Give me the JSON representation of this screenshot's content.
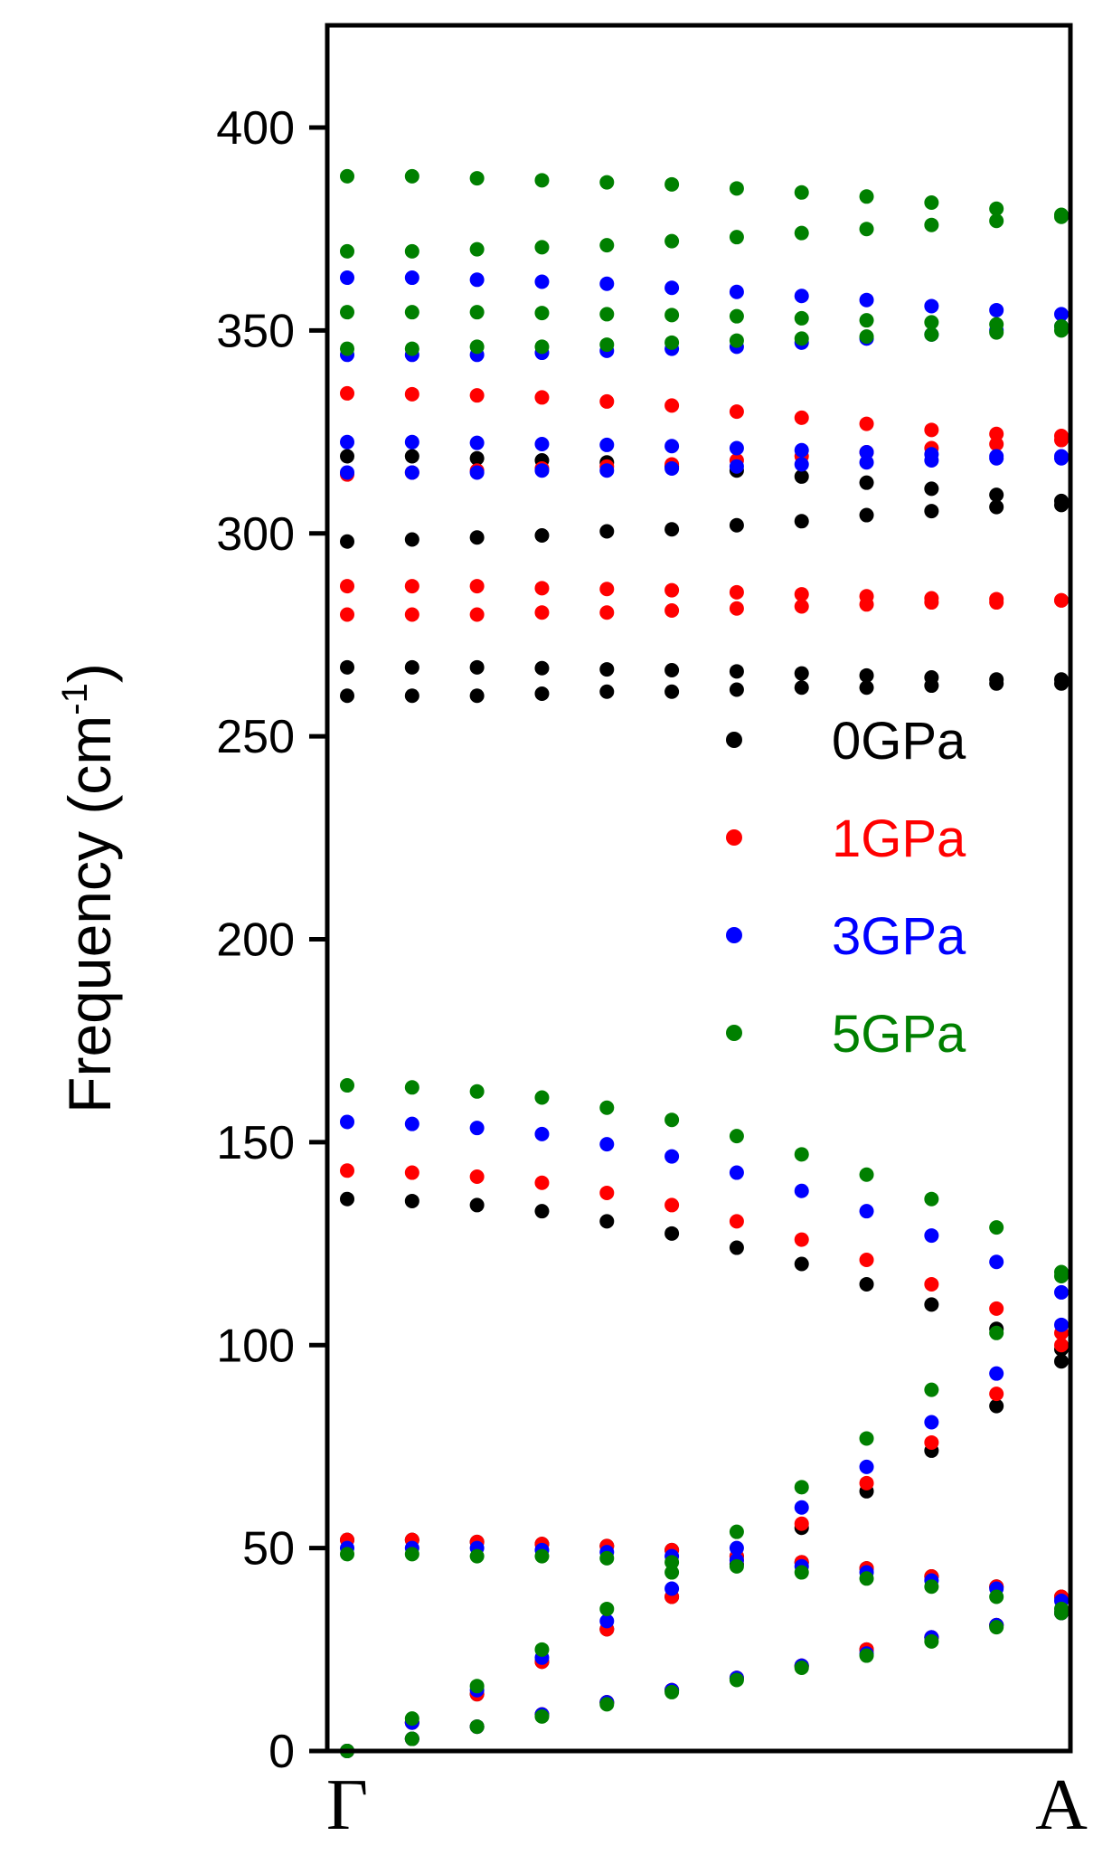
{
  "chart_data": {
    "type": "scatter",
    "title": "",
    "xlabel": "",
    "ylabel": "Frequency (cm",
    "ylabel_superscript": "-1",
    "ylabel_close": ")",
    "ylim": [
      0,
      425
    ],
    "yticks": [
      0,
      50,
      100,
      150,
      200,
      250,
      300,
      350,
      400
    ],
    "x_points": [
      "Γ",
      "A"
    ],
    "grid": false,
    "legend_position": "right-middle",
    "series": [
      {
        "name": "0GPa",
        "color": "#000000",
        "branches": [
          [
            0,
            7,
            14,
            22,
            30,
            38,
            46,
            55,
            64,
            74,
            85,
            96
          ],
          [
            0,
            3,
            6,
            9,
            12,
            15,
            18,
            21,
            25,
            28,
            31,
            34
          ],
          [
            52,
            52,
            51.5,
            51,
            50.5,
            49.5,
            48,
            46.5,
            45,
            43,
            40.5,
            38
          ],
          [
            136,
            135.5,
            134.5,
            133,
            130.5,
            127.5,
            124,
            120,
            115,
            110,
            104,
            99
          ],
          [
            260,
            260,
            260,
            260.5,
            261,
            261,
            261.5,
            262,
            262,
            262.5,
            263,
            263
          ],
          [
            267,
            267,
            267,
            266.8,
            266.5,
            266.3,
            266,
            265.5,
            265,
            264.5,
            264,
            264
          ],
          [
            298,
            298.5,
            299,
            299.5,
            300.5,
            301,
            302,
            303,
            304.5,
            305.5,
            306.5,
            307
          ],
          [
            319,
            319,
            318.5,
            318,
            317.5,
            316.5,
            315.5,
            314,
            312.5,
            311,
            309.5,
            308
          ]
        ]
      },
      {
        "name": "1GPa",
        "color": "#ff0000",
        "branches": [
          [
            0,
            7,
            14,
            22,
            30,
            38,
            47,
            56,
            66,
            76,
            88,
            100
          ],
          [
            0,
            3,
            6,
            9,
            12,
            15,
            18,
            21,
            25,
            28,
            31,
            34
          ],
          [
            52,
            52,
            51.5,
            51,
            50.5,
            49.5,
            48,
            46.5,
            45,
            43,
            40.5,
            38
          ],
          [
            143,
            142.5,
            141.5,
            140,
            137.5,
            134.5,
            130.5,
            126,
            121,
            115,
            109,
            103
          ],
          [
            280,
            280,
            280,
            280.5,
            280.5,
            281,
            281.5,
            282,
            282.5,
            283,
            283,
            283.5
          ],
          [
            287,
            287,
            287,
            286.5,
            286.3,
            286,
            285.5,
            285,
            284.5,
            284,
            283.8,
            283.5
          ],
          [
            314.5,
            315,
            315.5,
            316,
            316.5,
            317,
            318,
            319,
            320,
            321,
            322,
            323
          ],
          [
            334.5,
            334.3,
            334,
            333.5,
            332.5,
            331.5,
            330,
            328.5,
            327,
            325.5,
            324.5,
            324
          ]
        ]
      },
      {
        "name": "3GPa",
        "color": "#0000ff",
        "branches": [
          [
            0,
            7,
            15,
            23,
            32,
            40,
            50,
            60,
            70,
            81,
            93,
            105
          ],
          [
            0,
            3,
            6,
            9,
            12,
            15,
            18,
            21,
            24,
            28,
            31,
            34
          ],
          [
            50,
            50,
            50,
            49.5,
            49,
            48,
            47,
            45.5,
            44,
            42,
            40,
            37
          ],
          [
            155,
            154.5,
            153.5,
            152,
            149.5,
            146.5,
            142.5,
            138,
            133,
            127,
            120.5,
            113
          ],
          [
            315,
            315,
            315,
            315.5,
            315.5,
            316,
            316.5,
            317,
            317.5,
            318,
            318.5,
            319
          ],
          [
            322.5,
            322.5,
            322.3,
            322,
            321.8,
            321.5,
            321,
            320.5,
            320,
            319.5,
            319,
            318.5
          ],
          [
            344,
            344,
            344,
            344.5,
            345,
            345.5,
            346,
            347,
            348,
            349,
            350,
            351
          ],
          [
            363,
            363,
            362.5,
            362,
            361.5,
            360.5,
            359.5,
            358.5,
            357.5,
            356,
            355,
            354
          ]
        ]
      },
      {
        "name": "5GPa",
        "color": "#008000",
        "branches": [
          [
            0,
            8,
            16,
            25,
            35,
            44,
            54,
            65,
            77,
            89,
            103,
            117
          ],
          [
            0,
            3,
            6,
            8.5,
            11.5,
            14.5,
            17.5,
            20.5,
            23.5,
            27,
            30.5,
            34
          ],
          [
            48.5,
            48.5,
            48,
            48,
            47.5,
            46.5,
            45.5,
            44,
            42.5,
            40.5,
            38,
            35
          ],
          [
            164,
            163.5,
            162.5,
            161,
            158.5,
            155.5,
            151.5,
            147,
            142,
            136,
            129,
            118
          ],
          [
            345.5,
            345.5,
            346,
            346,
            346.5,
            347,
            347.5,
            348,
            348.5,
            349,
            349.5,
            350
          ],
          [
            354.5,
            354.5,
            354.5,
            354.3,
            354,
            353.8,
            353.5,
            353,
            352.5,
            352,
            351.5,
            351
          ],
          [
            369.5,
            369.5,
            370,
            370.5,
            371,
            372,
            373,
            374,
            375,
            376,
            377,
            378
          ],
          [
            388,
            388,
            387.5,
            387,
            386.5,
            386,
            385,
            384,
            383,
            381.5,
            380,
            378.5
          ]
        ]
      }
    ]
  }
}
